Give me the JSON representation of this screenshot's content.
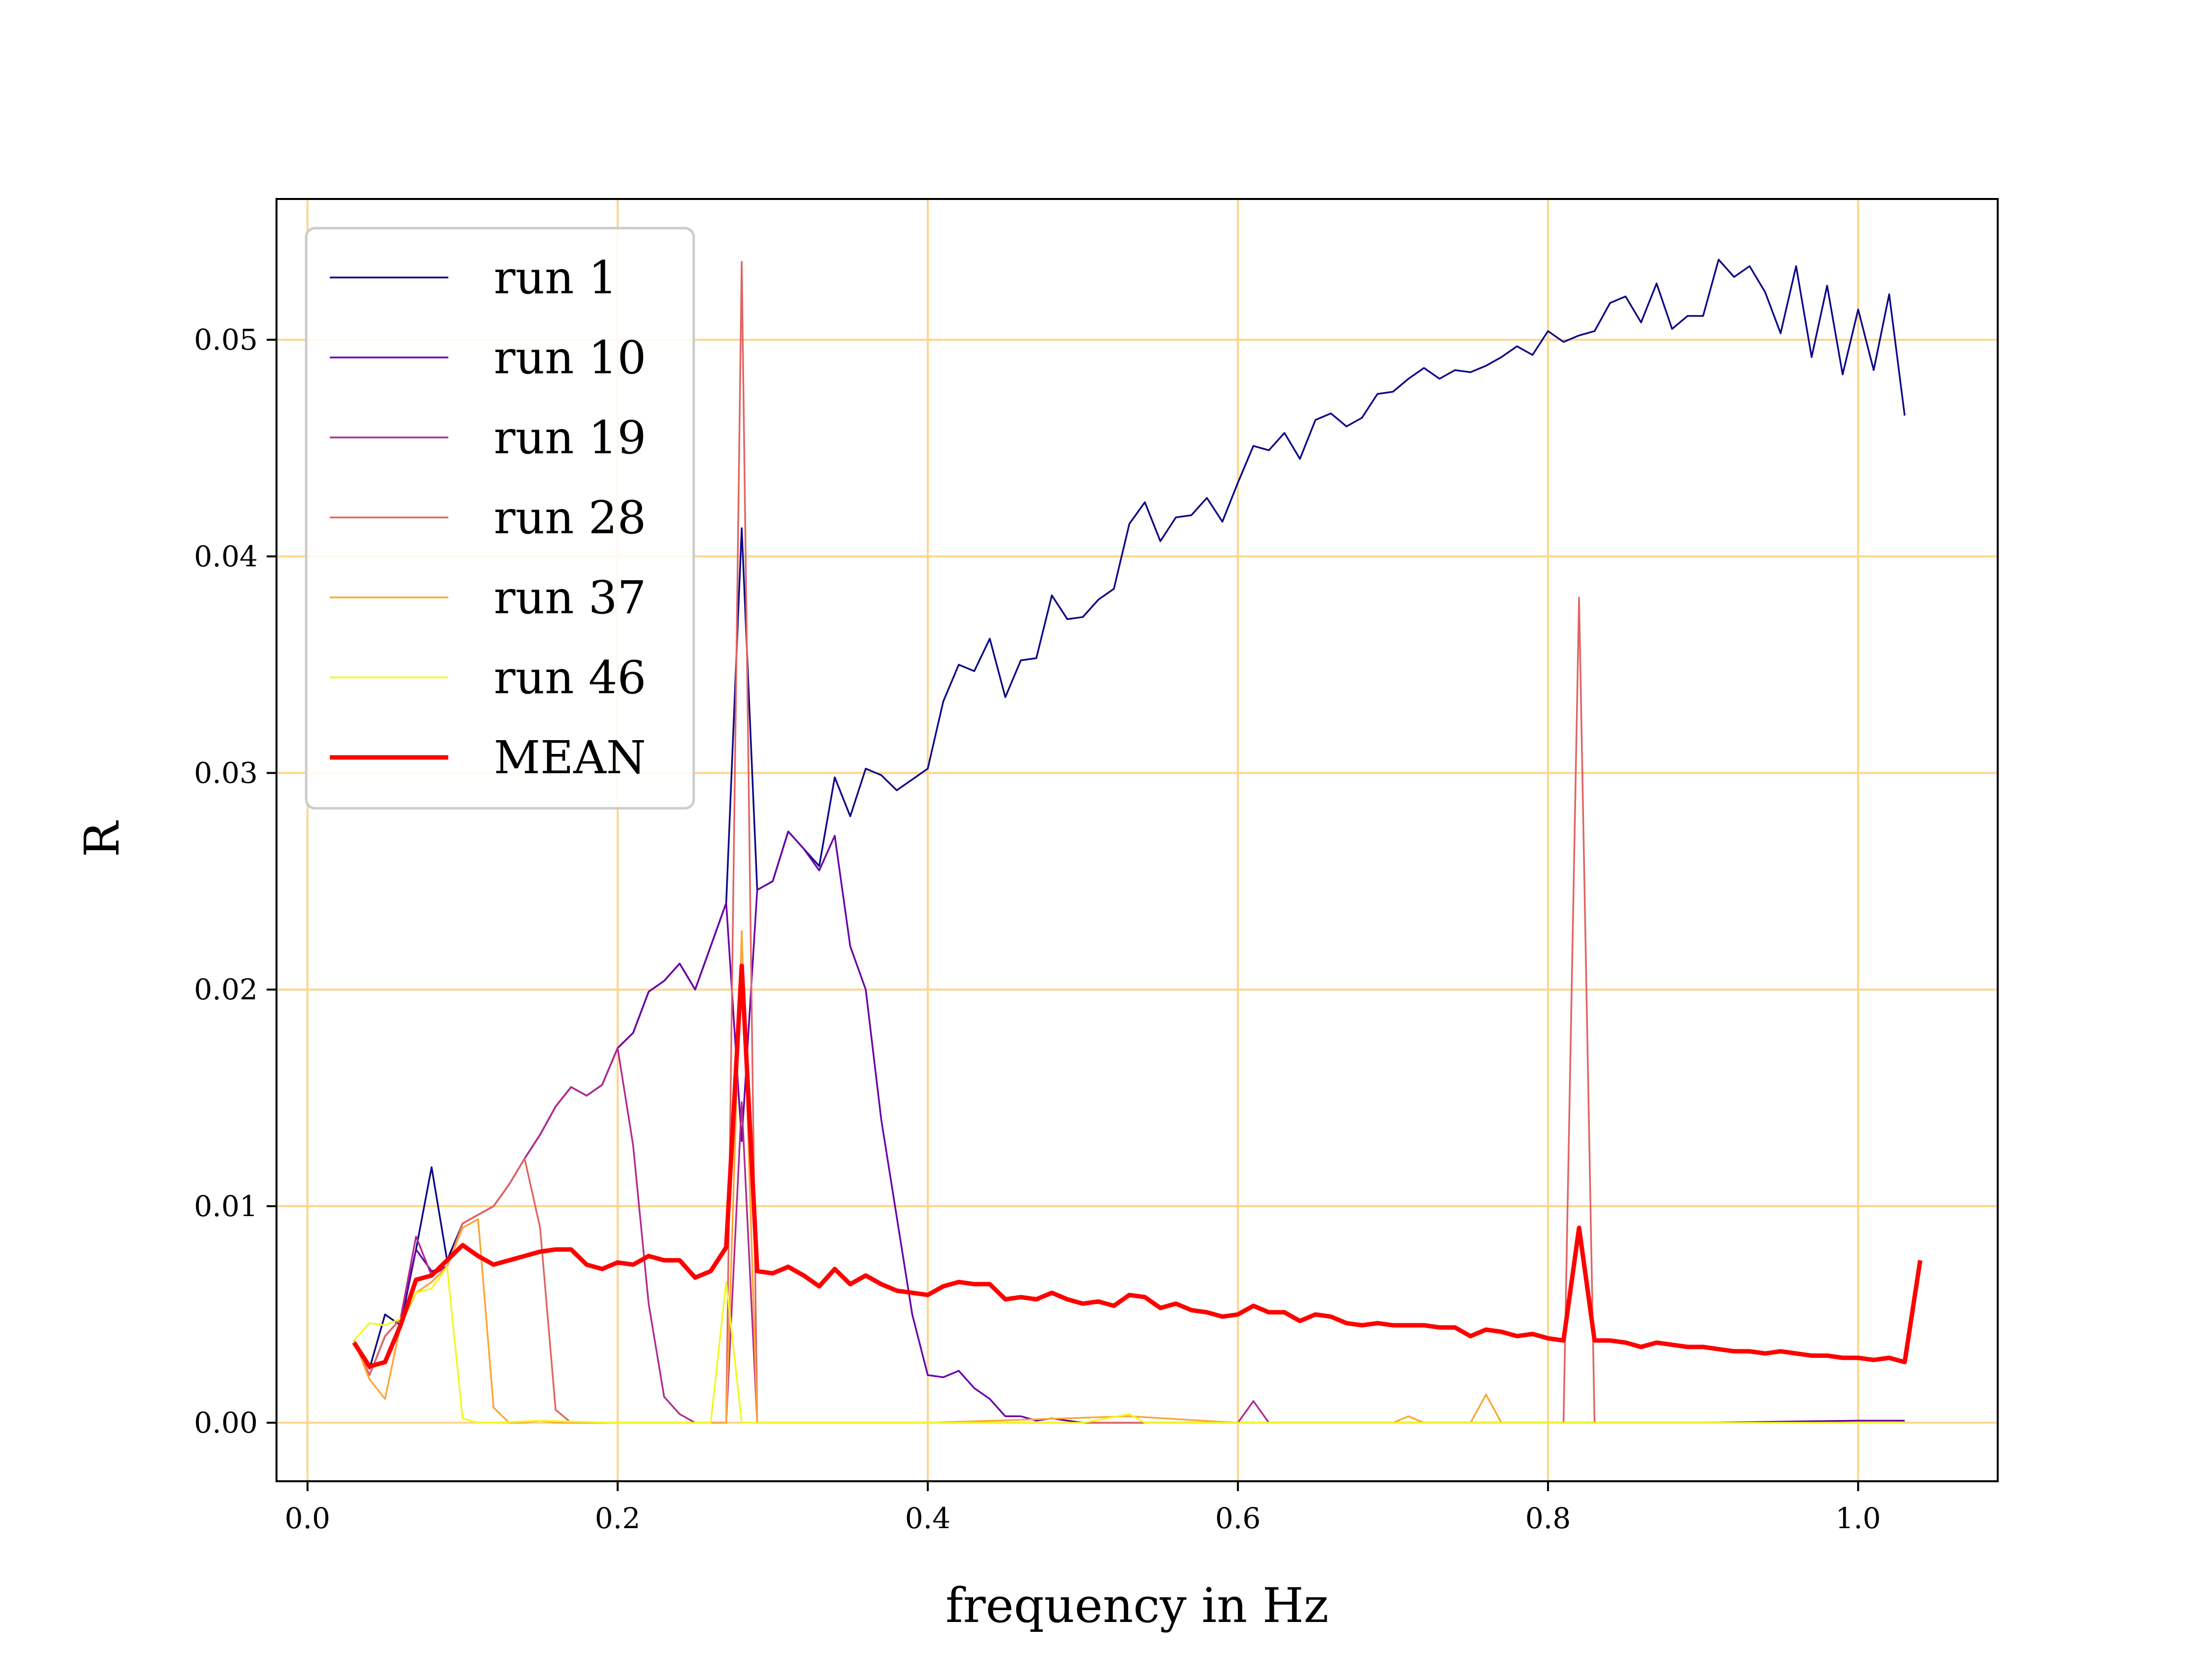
{
  "chart_data": {
    "type": "line",
    "xlabel": "frequency in Hz",
    "ylabel": "R",
    "xlim": [
      -0.02,
      1.09
    ],
    "ylim": [
      -0.0027,
      0.0565
    ],
    "xticks": [
      "0.0",
      "0.2",
      "0.4",
      "0.6",
      "0.8",
      "1.0"
    ],
    "xtick_values": [
      0.0,
      0.2,
      0.4,
      0.6,
      0.8,
      1.0
    ],
    "yticks": [
      "0.00",
      "0.01",
      "0.02",
      "0.03",
      "0.04",
      "0.05"
    ],
    "ytick_values": [
      0.0,
      0.01,
      0.02,
      0.03,
      0.04,
      0.05
    ],
    "grid": true,
    "grid_color": "#fdd58a",
    "legend_position": "upper-left",
    "series": [
      {
        "name": "run 1",
        "color": "#0d0887",
        "x": [
          0.03,
          0.04,
          0.05,
          0.06,
          0.07,
          0.08,
          0.09,
          0.1,
          0.11,
          0.12,
          0.13,
          0.14,
          0.15,
          0.16,
          0.17,
          0.18,
          0.19,
          0.2,
          0.21,
          0.22,
          0.23,
          0.24,
          0.25,
          0.26,
          0.27,
          0.28,
          0.29,
          0.3,
          0.31,
          0.32,
          0.33,
          0.34,
          0.35,
          0.36,
          0.37,
          0.38,
          0.39,
          0.4,
          0.41,
          0.42,
          0.43,
          0.44,
          0.45,
          0.46,
          0.47,
          0.48,
          0.49,
          0.5,
          0.51,
          0.52,
          0.53,
          0.54,
          0.55,
          0.56,
          0.57,
          0.58,
          0.59,
          0.6,
          0.61,
          0.62,
          0.63,
          0.64,
          0.65,
          0.66,
          0.67,
          0.68,
          0.69,
          0.7,
          0.71,
          0.72,
          0.73,
          0.74,
          0.75,
          0.76,
          0.77,
          0.78,
          0.79,
          0.8,
          0.81,
          0.82,
          0.83,
          0.84,
          0.85,
          0.86,
          0.87,
          0.88,
          0.89,
          0.9,
          0.91,
          0.92,
          0.93,
          0.94,
          0.95,
          0.96,
          0.97,
          0.98,
          0.99,
          1.0,
          1.01,
          1.02,
          1.03
        ],
        "y": [
          0.0038,
          0.0025,
          0.005,
          0.0045,
          0.008,
          0.0118,
          0.0075,
          0.0092,
          0.0096,
          0.01,
          0.011,
          0.0122,
          0.0133,
          0.0146,
          0.0155,
          0.0151,
          0.0156,
          0.0173,
          0.018,
          0.0199,
          0.0204,
          0.0212,
          0.02,
          0.022,
          0.024,
          0.0413,
          0.0246,
          0.025,
          0.0273,
          0.0265,
          0.0257,
          0.0298,
          0.028,
          0.0302,
          0.0299,
          0.0292,
          0.0297,
          0.0302,
          0.0333,
          0.035,
          0.0347,
          0.0362,
          0.0335,
          0.0352,
          0.0353,
          0.0382,
          0.0371,
          0.0372,
          0.038,
          0.0385,
          0.0415,
          0.0425,
          0.0407,
          0.0418,
          0.0419,
          0.0427,
          0.0416,
          0.0434,
          0.0451,
          0.0449,
          0.0457,
          0.0445,
          0.0463,
          0.0466,
          0.046,
          0.0464,
          0.0475,
          0.0476,
          0.0482,
          0.0487,
          0.0482,
          0.0486,
          0.0485,
          0.0488,
          0.0492,
          0.0497,
          0.0493,
          0.0504,
          0.0499,
          0.0502,
          0.0504,
          0.0517,
          0.052,
          0.0508,
          0.0526,
          0.0505,
          0.0511,
          0.0511,
          0.0537,
          0.0529,
          0.0534,
          0.0522,
          0.0503,
          0.0534,
          0.0492,
          0.0525,
          0.0484,
          0.0514,
          0.0486,
          0.0521,
          0.0465
        ]
      },
      {
        "name": "run 10",
        "color": "#6a00a8",
        "x": [
          0.03,
          0.04,
          0.05,
          0.06,
          0.07,
          0.08,
          0.09,
          0.1,
          0.11,
          0.12,
          0.13,
          0.14,
          0.15,
          0.16,
          0.17,
          0.18,
          0.19,
          0.2,
          0.21,
          0.22,
          0.23,
          0.24,
          0.25,
          0.26,
          0.27,
          0.28,
          0.29,
          0.3,
          0.31,
          0.32,
          0.33,
          0.34,
          0.35,
          0.36,
          0.37,
          0.38,
          0.39,
          0.4,
          0.41,
          0.42,
          0.43,
          0.44,
          0.45,
          0.46,
          0.47,
          0.48,
          0.49,
          0.5,
          0.6,
          0.7,
          0.8,
          0.9,
          1.0,
          1.03
        ],
        "y": [
          0.0038,
          0.0022,
          0.004,
          0.0048,
          0.008,
          0.007,
          0.0072,
          0.0092,
          0.0096,
          0.01,
          0.011,
          0.0122,
          0.0133,
          0.0146,
          0.0155,
          0.0151,
          0.0156,
          0.0173,
          0.018,
          0.0199,
          0.0204,
          0.0212,
          0.02,
          0.022,
          0.024,
          0.013,
          0.0246,
          0.025,
          0.0273,
          0.0265,
          0.0255,
          0.0271,
          0.022,
          0.02,
          0.014,
          0.0095,
          0.005,
          0.0022,
          0.0021,
          0.0024,
          0.0016,
          0.0011,
          0.0003,
          0.0003,
          0.0001,
          0.0002,
          0.0001,
          0.0,
          0.0,
          0.0,
          0.0,
          0.0,
          0.0001,
          0.0001
        ]
      },
      {
        "name": "run 19",
        "color": "#b12a90",
        "x": [
          0.03,
          0.04,
          0.05,
          0.06,
          0.07,
          0.08,
          0.09,
          0.1,
          0.11,
          0.12,
          0.13,
          0.14,
          0.15,
          0.16,
          0.17,
          0.18,
          0.19,
          0.2,
          0.21,
          0.22,
          0.23,
          0.24,
          0.25,
          0.26,
          0.27,
          0.28,
          0.29,
          0.3,
          0.4,
          0.5,
          0.6,
          0.61,
          0.62,
          0.7,
          0.8,
          0.9,
          1.0,
          1.03
        ],
        "y": [
          0.0038,
          0.0022,
          0.004,
          0.0048,
          0.0086,
          0.0068,
          0.0072,
          0.0092,
          0.0096,
          0.01,
          0.011,
          0.0122,
          0.0133,
          0.0146,
          0.0155,
          0.0151,
          0.0156,
          0.0173,
          0.0128,
          0.0055,
          0.0012,
          0.0004,
          0.0,
          0.0,
          0.0,
          0.0148,
          0.0,
          0.0,
          0.0,
          0.0,
          0.0,
          0.001,
          0.0,
          0.0,
          0.0,
          0.0,
          0.0,
          0.0
        ]
      },
      {
        "name": "run 28",
        "color": "#e16462",
        "x": [
          0.03,
          0.04,
          0.05,
          0.06,
          0.07,
          0.08,
          0.09,
          0.1,
          0.11,
          0.12,
          0.13,
          0.14,
          0.15,
          0.16,
          0.17,
          0.18,
          0.2,
          0.25,
          0.27,
          0.28,
          0.29,
          0.3,
          0.4,
          0.5,
          0.6,
          0.7,
          0.8,
          0.81,
          0.82,
          0.83,
          0.84,
          0.9,
          1.0,
          1.03
        ],
        "y": [
          0.0038,
          0.0022,
          0.004,
          0.0048,
          0.006,
          0.0065,
          0.0072,
          0.0092,
          0.0096,
          0.01,
          0.011,
          0.0122,
          0.009,
          0.0006,
          0.0,
          0.0,
          0.0,
          0.0,
          0.0,
          0.0536,
          0.0,
          0.0,
          0.0,
          0.0,
          0.0,
          0.0,
          0.0,
          0.0,
          0.0381,
          0.0,
          0.0,
          0.0,
          0.0,
          0.0
        ]
      },
      {
        "name": "run 37",
        "color": "#fca636",
        "x": [
          0.03,
          0.04,
          0.05,
          0.06,
          0.07,
          0.08,
          0.09,
          0.1,
          0.11,
          0.12,
          0.13,
          0.14,
          0.15,
          0.16,
          0.2,
          0.27,
          0.28,
          0.29,
          0.3,
          0.4,
          0.53,
          0.6,
          0.7,
          0.71,
          0.72,
          0.75,
          0.76,
          0.77,
          0.8,
          0.9,
          1.0,
          1.03
        ],
        "y": [
          0.0038,
          0.002,
          0.0011,
          0.0045,
          0.006,
          0.0065,
          0.0072,
          0.009,
          0.0094,
          0.0007,
          0.0,
          0.0,
          0.0001,
          0.0,
          0.0,
          0.0,
          0.0227,
          0.0,
          0.0,
          0.0,
          0.0003,
          0.0,
          0.0,
          0.0003,
          0.0,
          0.0,
          0.0013,
          0.0,
          0.0,
          0.0,
          0.0,
          0.0
        ]
      },
      {
        "name": "run 46",
        "color": "#f0f921",
        "x": [
          0.03,
          0.04,
          0.05,
          0.06,
          0.07,
          0.08,
          0.09,
          0.1,
          0.11,
          0.12,
          0.15,
          0.2,
          0.26,
          0.27,
          0.28,
          0.29,
          0.4,
          0.5,
          0.53,
          0.54,
          0.6,
          0.7,
          0.8,
          0.9,
          1.0,
          1.03
        ],
        "y": [
          0.0038,
          0.0046,
          0.0045,
          0.0048,
          0.006,
          0.0062,
          0.0072,
          0.0002,
          0.0,
          0.0,
          0.0001,
          0.0,
          0.0,
          0.0065,
          0.0,
          0.0,
          0.0,
          0.0,
          0.0004,
          0.0,
          0.0,
          0.0,
          0.0,
          0.0,
          0.0,
          0.0
        ]
      },
      {
        "name": "MEAN",
        "color": "#ff0000",
        "x": [
          0.03,
          0.04,
          0.05,
          0.06,
          0.07,
          0.08,
          0.09,
          0.1,
          0.11,
          0.12,
          0.13,
          0.14,
          0.15,
          0.16,
          0.17,
          0.18,
          0.19,
          0.2,
          0.21,
          0.22,
          0.23,
          0.24,
          0.25,
          0.26,
          0.27,
          0.28,
          0.29,
          0.3,
          0.31,
          0.32,
          0.33,
          0.34,
          0.35,
          0.36,
          0.37,
          0.38,
          0.39,
          0.4,
          0.41,
          0.42,
          0.43,
          0.44,
          0.45,
          0.46,
          0.47,
          0.48,
          0.49,
          0.5,
          0.51,
          0.52,
          0.53,
          0.54,
          0.55,
          0.56,
          0.57,
          0.58,
          0.59,
          0.6,
          0.61,
          0.62,
          0.63,
          0.64,
          0.65,
          0.66,
          0.67,
          0.68,
          0.69,
          0.7,
          0.71,
          0.72,
          0.73,
          0.74,
          0.75,
          0.76,
          0.77,
          0.78,
          0.79,
          0.8,
          0.81,
          0.82,
          0.83,
          0.84,
          0.85,
          0.86,
          0.87,
          0.88,
          0.89,
          0.9,
          0.91,
          0.92,
          0.93,
          0.94,
          0.95,
          0.96,
          0.97,
          0.98,
          0.99,
          1.0,
          1.01,
          1.02,
          1.03,
          1.04
        ],
        "y": [
          0.0037,
          0.0026,
          0.0028,
          0.0045,
          0.0066,
          0.0068,
          0.0075,
          0.0082,
          0.0077,
          0.0073,
          0.0075,
          0.0077,
          0.0079,
          0.008,
          0.008,
          0.0073,
          0.0071,
          0.0074,
          0.0073,
          0.0077,
          0.0075,
          0.0075,
          0.0067,
          0.007,
          0.0081,
          0.0211,
          0.007,
          0.0069,
          0.0072,
          0.0068,
          0.0063,
          0.0071,
          0.0064,
          0.0068,
          0.0064,
          0.0061,
          0.006,
          0.0059,
          0.0063,
          0.0065,
          0.0064,
          0.0064,
          0.0057,
          0.0058,
          0.0057,
          0.006,
          0.0057,
          0.0055,
          0.0056,
          0.0054,
          0.0059,
          0.0058,
          0.0053,
          0.0055,
          0.0052,
          0.0051,
          0.0049,
          0.005,
          0.0054,
          0.0051,
          0.0051,
          0.0047,
          0.005,
          0.0049,
          0.0046,
          0.0045,
          0.0046,
          0.0045,
          0.0045,
          0.0045,
          0.0044,
          0.0044,
          0.004,
          0.0043,
          0.0042,
          0.004,
          0.0041,
          0.0039,
          0.0038,
          0.009,
          0.0038,
          0.0038,
          0.0037,
          0.0035,
          0.0037,
          0.0036,
          0.0035,
          0.0035,
          0.0034,
          0.0033,
          0.0033,
          0.0032,
          0.0033,
          0.0032,
          0.0031,
          0.0031,
          0.003,
          0.003,
          0.0029,
          0.003,
          0.0028,
          0.0075
        ]
      }
    ]
  }
}
